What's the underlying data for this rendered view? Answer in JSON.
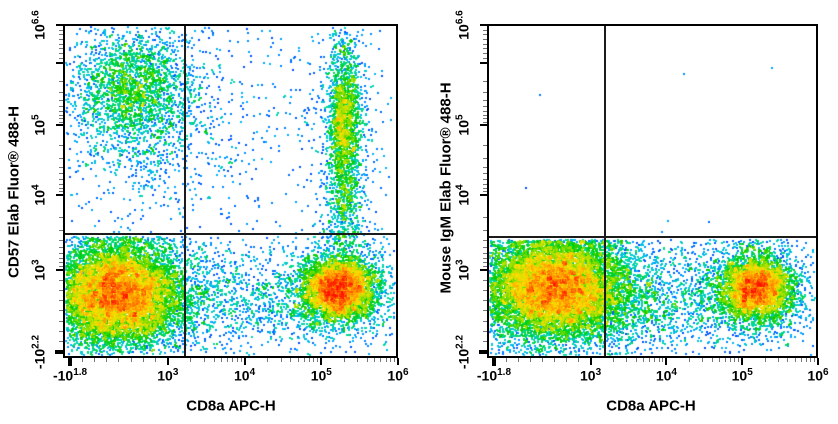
{
  "figure": {
    "background": "#ffffff",
    "description": "Two-panel flow cytometry pseudocolor density dot plots with quadrant gates"
  },
  "chart_data": {
    "type": "scatter",
    "subtype": "flow-cytometry-pseudocolor-density",
    "scale": "biexponential-log",
    "x_range": [
      "-10^1.8",
      "10^6"
    ],
    "y_range": [
      "-10^2.2",
      "10^6.6"
    ],
    "grid": false,
    "legend": "none",
    "colormap": {
      "name": "jet-like-density",
      "low_to_high": [
        "#0000c0",
        "#0040ff",
        "#00b4ff",
        "#00dd99",
        "#00cc00",
        "#99e000",
        "#ffe000",
        "#ff8800",
        "#ff1100"
      ]
    },
    "panels": [
      {
        "xlabel": "CD8a APC-H",
        "ylabel": "CD57 Elab Fluor® 488-H",
        "seed": 20240101,
        "x_ticks": [
          {
            "base": "-10",
            "exp": "1.8",
            "f": 0.021,
            "bold": true
          },
          {
            "base": "10",
            "exp": "3",
            "f": 0.313
          },
          {
            "base": "10",
            "exp": "4",
            "f": 0.542
          },
          {
            "base": "10",
            "exp": "5",
            "f": 0.771
          },
          {
            "base": "10",
            "exp": "6",
            "f": 1.0
          }
        ],
        "y_ticks": [
          {
            "base": "10",
            "exp": "6.6",
            "f": 0.004
          },
          {
            "base": null,
            "exp": null,
            "f": 0.117
          },
          {
            "base": "10",
            "exp": "5",
            "f": 0.302
          },
          {
            "base": "10",
            "exp": "4",
            "f": 0.512
          },
          {
            "base": "10",
            "exp": "3",
            "f": 0.736
          },
          {
            "base": "-10",
            "exp": "2.2",
            "f": 0.982,
            "bold": true
          }
        ],
        "quadrant_gate": {
          "x_f": 0.364,
          "y_f": 0.629
        },
        "populations": [
          {
            "name": "CD8neg CD57neg dense cluster",
            "approx_center": [
              "10^2.4",
              "10^2.8"
            ],
            "cx": 0.16,
            "cy": 0.805,
            "sx": 0.09,
            "sy": 0.072,
            "n": 9000,
            "ymin_f": 0.634
          },
          {
            "name": "CD8neg CD57neg halo",
            "cx": 0.17,
            "cy": 0.814,
            "sx": 0.137,
            "sy": 0.108,
            "n": 2300,
            "ymin_f": 0.634
          },
          {
            "name": "CD8neg CD57pos cloud",
            "approx_center": [
              "10^2.4",
              "10^5.3"
            ],
            "cx": 0.21,
            "cy": 0.19,
            "sx": 0.09,
            "sy": 0.093,
            "n": 2100
          },
          {
            "name": "CD8neg CD57pos halo trail",
            "cx": 0.215,
            "cy": 0.29,
            "sx": 0.137,
            "sy": 0.162,
            "n": 850
          },
          {
            "name": "CD8pos CD57pos band",
            "approx_center": [
              "10^5.2",
              "10^5"
            ],
            "cx": 0.838,
            "cy": 0.28,
            "sx": 0.024,
            "sy": 0.115,
            "n": 1500
          },
          {
            "name": "CD8pos band tail to gate",
            "cx": 0.838,
            "cy": 0.5,
            "sx": 0.027,
            "sy": 0.126,
            "n": 650
          },
          {
            "name": "CD8pos band fringe",
            "cx": 0.838,
            "cy": 0.33,
            "sx": 0.051,
            "sy": 0.18,
            "n": 420
          },
          {
            "name": "CD8pos CD57neg cluster",
            "approx_center": [
              "10^5.2",
              "10^2.8"
            ],
            "cx": 0.82,
            "cy": 0.79,
            "sx": 0.051,
            "sy": 0.045,
            "n": 4300
          },
          {
            "name": "CD8pos CD57neg halo",
            "cx": 0.82,
            "cy": 0.796,
            "sx": 0.09,
            "sy": 0.081,
            "n": 1300
          },
          {
            "name": "bridge scatter between negatives and CD8pos",
            "cx": 0.507,
            "cy": 0.817,
            "sx": 0.215,
            "sy": 0.078,
            "n": 1250,
            "ymin_f": 0.634
          },
          {
            "name": "sparse scatter upper middle",
            "cx": 0.537,
            "cy": 0.314,
            "sx": 0.233,
            "sy": 0.174,
            "n": 300
          },
          {
            "name": "uniform rare events",
            "uniform": true,
            "n": 240
          }
        ]
      },
      {
        "xlabel": "CD8a APC-H",
        "ylabel": "Mouse IgM Elab Fluor® 488-H",
        "seed": 777,
        "x_ticks": [
          {
            "base": "-10",
            "exp": "1.8",
            "f": 0.021,
            "bold": true
          },
          {
            "base": "10",
            "exp": "3",
            "f": 0.313
          },
          {
            "base": "10",
            "exp": "4",
            "f": 0.542
          },
          {
            "base": "10",
            "exp": "5",
            "f": 0.771
          },
          {
            "base": "10",
            "exp": "6",
            "f": 1.0
          }
        ],
        "y_ticks": [
          {
            "base": "10",
            "exp": "6.6",
            "f": 0.004
          },
          {
            "base": null,
            "exp": null,
            "f": 0.117
          },
          {
            "base": "10",
            "exp": "5",
            "f": 0.302
          },
          {
            "base": "10",
            "exp": "4",
            "f": 0.512
          },
          {
            "base": "10",
            "exp": "3",
            "f": 0.736
          },
          {
            "base": "-10",
            "exp": "2.2",
            "f": 0.982,
            "bold": true
          }
        ],
        "quadrant_gate": {
          "x_f": 0.357,
          "y_f": 0.638
        },
        "populations": [
          {
            "name": "IgM-neg CD8neg dense cluster",
            "approx_center": [
              "10^2.4",
              "10^2.8"
            ],
            "cx": 0.2,
            "cy": 0.787,
            "sx": 0.103,
            "sy": 0.072,
            "n": 9500,
            "ymin_f": 0.644
          },
          {
            "name": "IgM-neg CD8neg halo",
            "cx": 0.2,
            "cy": 0.8,
            "sx": 0.169,
            "sy": 0.108,
            "n": 2800,
            "ymin_f": 0.644
          },
          {
            "name": "IgM-neg CD8pos cluster",
            "approx_center": [
              "10^5.2",
              "10^2.8"
            ],
            "cx": 0.81,
            "cy": 0.787,
            "sx": 0.051,
            "sy": 0.046,
            "n": 4000,
            "ymin_f": 0.644
          },
          {
            "name": "IgM-neg CD8pos halo",
            "cx": 0.81,
            "cy": 0.796,
            "sx": 0.088,
            "sy": 0.078,
            "n": 1000,
            "ymin_f": 0.644
          },
          {
            "name": "bridge scatter",
            "cx": 0.498,
            "cy": 0.823,
            "sx": 0.257,
            "sy": 0.081,
            "n": 1900,
            "ymin_f": 0.644
          },
          {
            "name": "rare events above gate",
            "cx": 0.453,
            "cy": 0.359,
            "sx": 0.272,
            "sy": 0.21,
            "n": 7
          }
        ]
      }
    ]
  }
}
